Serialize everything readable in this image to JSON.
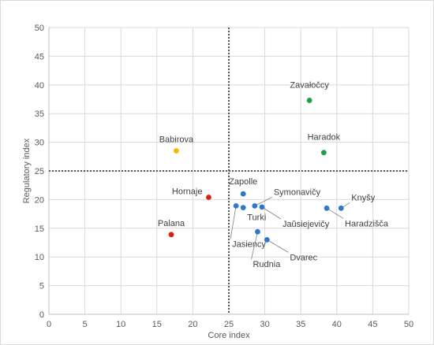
{
  "chart_data": {
    "type": "scatter",
    "xlabel": "Core index",
    "ylabel": "Regulatory index",
    "xlim": [
      0,
      50
    ],
    "ylim": [
      0,
      50
    ],
    "xticks": [
      0,
      5,
      10,
      15,
      20,
      25,
      30,
      35,
      40,
      45,
      50
    ],
    "yticks": [
      0,
      5,
      10,
      15,
      20,
      25,
      30,
      35,
      40,
      45,
      50
    ],
    "grid": true,
    "reference_lines": {
      "x": 25,
      "y": 25,
      "style": "dotted"
    },
    "colors": {
      "green": "#21a048",
      "yellow": "#f5b800",
      "red": "#dd1c1c",
      "blue": "#2d77cc"
    },
    "points": [
      {
        "name": "Zavałočcy",
        "x": 36.2,
        "y": 37.3,
        "color": "green"
      },
      {
        "name": "Haradok",
        "x": 38.2,
        "y": 28.2,
        "color": "green"
      },
      {
        "name": "Babirova",
        "x": 17.7,
        "y": 28.5,
        "color": "yellow"
      },
      {
        "name": "Hornaje",
        "x": 22.2,
        "y": 20.4,
        "color": "red"
      },
      {
        "name": "Palana",
        "x": 17.0,
        "y": 13.9,
        "color": "red"
      },
      {
        "name": "Zapolle",
        "x": 27.0,
        "y": 21.0,
        "color": "blue"
      },
      {
        "name": "Symonavičy",
        "x": 28.6,
        "y": 18.9,
        "color": "blue"
      },
      {
        "name": "Turki",
        "x": 27.0,
        "y": 18.6,
        "color": "blue"
      },
      {
        "name": "Jasiency",
        "x": 26.0,
        "y": 18.9,
        "color": "blue"
      },
      {
        "name": "Jaŭsiejevičy",
        "x": 29.6,
        "y": 18.7,
        "color": "blue"
      },
      {
        "name": "Rudnia",
        "x": 29.0,
        "y": 14.4,
        "color": "blue"
      },
      {
        "name": "Dvarec",
        "x": 30.3,
        "y": 13.0,
        "color": "blue"
      },
      {
        "name": "Knyšy",
        "x": 40.6,
        "y": 18.5,
        "color": "blue"
      },
      {
        "name": "Haradzišča",
        "x": 38.6,
        "y": 18.5,
        "color": "blue"
      }
    ]
  }
}
